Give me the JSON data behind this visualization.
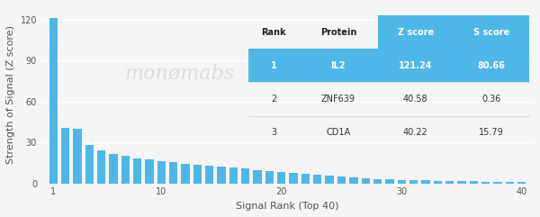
{
  "bar_values": [
    121.24,
    40.58,
    40.22,
    28.0,
    24.5,
    21.5,
    20.0,
    18.5,
    17.5,
    16.5,
    15.5,
    14.5,
    13.8,
    13.0,
    12.2,
    11.5,
    10.8,
    10.0,
    9.2,
    8.5,
    7.8,
    7.0,
    6.2,
    5.5,
    4.8,
    4.2,
    3.7,
    3.3,
    2.9,
    2.6,
    2.3,
    2.1,
    1.9,
    1.7,
    1.6,
    1.5,
    1.4,
    1.3,
    1.2,
    1.1
  ],
  "bar_color": "#4db8e8",
  "xlabel": "Signal Rank (Top 40)",
  "ylabel": "Strength of Signal (Z score)",
  "yticks": [
    0,
    30,
    60,
    90,
    120
  ],
  "xticks": [
    1,
    10,
    20,
    30,
    40
  ],
  "ylim": [
    0,
    130
  ],
  "xlim": [
    0,
    41
  ],
  "bg_color": "#f5f5f5",
  "grid_color": "#ffffff",
  "table_headers": [
    "Rank",
    "Protein",
    "Z score",
    "S score"
  ],
  "table_rows": [
    [
      "1",
      "IL2",
      "121.24",
      "80.66"
    ],
    [
      "2",
      "ZNF639",
      "40.58",
      "0.36"
    ],
    [
      "3",
      "CD1A",
      "40.22",
      "15.79"
    ]
  ],
  "table_highlight_color": "#4db8e8",
  "table_highlight_text": "#ffffff",
  "table_normal_text": "#333333",
  "table_header_text": "#222222",
  "watermark_text": "monømabs",
  "watermark_color": "#dddddd",
  "separator_color": "#cccccc"
}
